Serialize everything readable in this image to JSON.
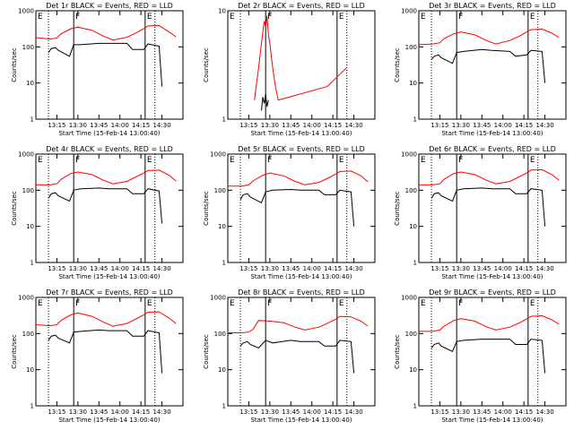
{
  "chart_data": [
    {
      "type": "line",
      "title": "Det 1r BLACK = Events, RED = LLD",
      "xlabel": "Start Time (15-Feb-14 13:00:40)",
      "ylabel": "Counts/sec",
      "ylim": [
        1,
        1000
      ],
      "y_scale": "log",
      "grid": false,
      "x_ticks": [
        "13:15",
        "13:30",
        "13:45",
        "14:00",
        "14:15",
        "14:30"
      ],
      "y_ticks": [
        "1",
        "10",
        "100",
        "1000"
      ],
      "markers": [
        {
          "label": "E",
          "at": "13:00"
        },
        {
          "label": "F",
          "at": "13:27"
        },
        {
          "label": "E",
          "at": "14:18"
        }
      ],
      "series": [
        {
          "color": "#ff0000",
          "x": [
            "13:00",
            "13:10",
            "13:15",
            "13:18",
            "13:25",
            "13:30",
            "13:40",
            "13:48",
            "13:55",
            "14:05",
            "14:12",
            "14:17",
            "14:20",
            "14:28",
            "14:35",
            "14:40"
          ],
          "values": [
            180,
            165,
            175,
            230,
            320,
            350,
            290,
            200,
            155,
            185,
            250,
            320,
            380,
            390,
            260,
            190
          ]
        },
        {
          "color": "#000000",
          "x": [
            "13:09",
            "13:11",
            "13:14",
            "13:16",
            "13:24",
            "13:27",
            "13:32",
            "13:45",
            "13:52",
            "14:05",
            "14:09",
            "14:17",
            "14:20",
            "14:28",
            "14:30"
          ],
          "values": [
            70,
            90,
            95,
            80,
            55,
            115,
            115,
            125,
            125,
            125,
            85,
            85,
            120,
            105,
            8
          ]
        }
      ]
    },
    {
      "type": "line",
      "title": "Det 2r BLACK = Events, RED = LLD",
      "xlabel": "Start Time (15-Feb-14 13:00:40)",
      "ylabel": "Counts/sec",
      "ylim": [
        1,
        10
      ],
      "y_scale": "log",
      "grid": false,
      "x_ticks": [
        "13:15",
        "13:30",
        "13:45",
        "14:00",
        "14:15",
        "14:30"
      ],
      "y_ticks": [
        "1",
        "10"
      ],
      "markers": [
        {
          "label": "E",
          "at": "13:00"
        },
        {
          "label": "F",
          "at": "13:27"
        },
        {
          "label": "E",
          "at": "14:18"
        }
      ],
      "series": [
        {
          "color": "#ff0000",
          "x": [
            "13:19",
            "13:22",
            "13:24",
            "13:26",
            "13:27",
            "13:28",
            "13:29",
            "13:30",
            "13:32",
            "13:34",
            "13:36",
            "14:11",
            "14:25"
          ],
          "values": [
            1.5,
            3,
            5,
            8,
            7,
            9,
            6,
            5,
            3,
            2,
            1.5,
            2,
            3
          ]
        },
        {
          "color": "#000000",
          "x": [
            "13:24",
            "13:25",
            "13:26",
            "13:27",
            "13:28",
            "13:29"
          ],
          "values": [
            1.2,
            1.6,
            1.4,
            1.7,
            1.3,
            1.5
          ]
        }
      ]
    },
    {
      "type": "line",
      "title": "Det 3r BLACK = Events, RED = LLD",
      "xlabel": "Start Time (15-Feb-14 13:00:40)",
      "ylabel": "Counts/sec",
      "ylim": [
        1,
        1000
      ],
      "y_scale": "log",
      "grid": false,
      "x_ticks": [
        "13:15",
        "13:30",
        "13:45",
        "14:00",
        "14:15",
        "14:30"
      ],
      "y_ticks": [
        "1",
        "10",
        "100",
        "1000"
      ],
      "markers": [
        {
          "label": "E",
          "at": "13:00"
        },
        {
          "label": "F",
          "at": "13:27"
        },
        {
          "label": "E",
          "at": "14:18"
        }
      ],
      "series": [
        {
          "color": "#ff0000",
          "x": [
            "13:00",
            "13:10",
            "13:15",
            "13:18",
            "13:25",
            "13:30",
            "13:40",
            "13:48",
            "13:55",
            "14:05",
            "14:12",
            "14:17",
            "14:20",
            "14:28",
            "14:35",
            "14:40"
          ],
          "values": [
            115,
            120,
            130,
            170,
            230,
            260,
            215,
            150,
            120,
            150,
            200,
            260,
            300,
            310,
            240,
            180
          ]
        },
        {
          "color": "#000000",
          "x": [
            "13:09",
            "13:11",
            "13:14",
            "13:16",
            "13:24",
            "13:27",
            "13:32",
            "13:45",
            "13:52",
            "14:05",
            "14:09",
            "14:17",
            "14:20",
            "14:28",
            "14:30"
          ],
          "values": [
            45,
            55,
            60,
            50,
            35,
            70,
            75,
            85,
            80,
            75,
            55,
            60,
            80,
            75,
            10
          ]
        }
      ]
    },
    {
      "type": "line",
      "title": "Det 4r BLACK = Events, RED = LLD",
      "xlabel": "Start Time (15-Feb-14 13:00:40)",
      "ylabel": "Counts/sec",
      "ylim": [
        1,
        1000
      ],
      "y_scale": "log",
      "grid": false,
      "x_ticks": [
        "13:15",
        "13:30",
        "13:45",
        "14:00",
        "14:15",
        "14:30"
      ],
      "y_ticks": [
        "1",
        "10",
        "100",
        "1000"
      ],
      "markers": [
        {
          "label": "E",
          "at": "13:00"
        },
        {
          "label": "F",
          "at": "13:27"
        },
        {
          "label": "E",
          "at": "14:18"
        }
      ],
      "series": [
        {
          "color": "#ff0000",
          "x": [
            "13:00",
            "13:10",
            "13:15",
            "13:18",
            "13:25",
            "13:30",
            "13:40",
            "13:48",
            "13:55",
            "14:05",
            "14:12",
            "14:17",
            "14:20",
            "14:28",
            "14:35",
            "14:40"
          ],
          "values": [
            140,
            140,
            150,
            200,
            290,
            320,
            270,
            190,
            150,
            175,
            240,
            300,
            350,
            360,
            260,
            180
          ]
        },
        {
          "color": "#000000",
          "x": [
            "13:09",
            "13:11",
            "13:14",
            "13:16",
            "13:24",
            "13:27",
            "13:32",
            "13:45",
            "13:52",
            "14:05",
            "14:09",
            "14:17",
            "14:20",
            "14:28",
            "14:30"
          ],
          "values": [
            60,
            80,
            85,
            70,
            50,
            100,
            110,
            115,
            110,
            110,
            80,
            80,
            110,
            95,
            12
          ]
        }
      ]
    },
    {
      "type": "line",
      "title": "Det 5r BLACK = Events, RED = LLD",
      "xlabel": "Start Time (15-Feb-14 13:00:40)",
      "ylabel": "Counts/sec",
      "ylim": [
        1,
        1000
      ],
      "y_scale": "log",
      "grid": false,
      "x_ticks": [
        "13:15",
        "13:30",
        "13:45",
        "14:00",
        "14:15",
        "14:30"
      ],
      "y_ticks": [
        "1",
        "10",
        "100",
        "1000"
      ],
      "markers": [
        {
          "label": "E",
          "at": "13:00"
        },
        {
          "label": "F",
          "at": "13:27"
        },
        {
          "label": "E",
          "at": "14:18"
        }
      ],
      "series": [
        {
          "color": "#ff0000",
          "x": [
            "13:00",
            "13:10",
            "13:15",
            "13:18",
            "13:25",
            "13:30",
            "13:40",
            "13:48",
            "13:55",
            "14:05",
            "14:12",
            "14:17",
            "14:20",
            "14:28",
            "14:35",
            "14:40"
          ],
          "values": [
            130,
            130,
            140,
            180,
            260,
            300,
            250,
            175,
            140,
            165,
            220,
            280,
            330,
            340,
            250,
            170
          ]
        },
        {
          "color": "#000000",
          "x": [
            "13:09",
            "13:11",
            "13:14",
            "13:16",
            "13:24",
            "13:27",
            "13:32",
            "13:45",
            "13:52",
            "14:05",
            "14:09",
            "14:17",
            "14:20",
            "14:28",
            "14:30"
          ],
          "values": [
            55,
            75,
            80,
            65,
            45,
            90,
            100,
            105,
            100,
            100,
            75,
            75,
            100,
            90,
            10
          ]
        }
      ]
    },
    {
      "type": "line",
      "title": "Det 6r BLACK = Events, RED = LLD",
      "xlabel": "Start Time (15-Feb-14 13:00:40)",
      "ylabel": "Counts/sec",
      "ylim": [
        1,
        1000
      ],
      "y_scale": "log",
      "grid": false,
      "x_ticks": [
        "13:15",
        "13:30",
        "13:45",
        "14:00",
        "14:15",
        "14:30"
      ],
      "y_ticks": [
        "1",
        "10",
        "100",
        "1000"
      ],
      "markers": [
        {
          "label": "E",
          "at": "13:00"
        },
        {
          "label": "F",
          "at": "13:27"
        },
        {
          "label": "E",
          "at": "14:18"
        }
      ],
      "series": [
        {
          "color": "#ff0000",
          "x": [
            "13:00",
            "13:10",
            "13:15",
            "13:18",
            "13:25",
            "13:30",
            "13:40",
            "13:48",
            "13:55",
            "14:05",
            "14:12",
            "14:17",
            "14:20",
            "14:28",
            "14:35",
            "14:40"
          ],
          "values": [
            140,
            140,
            150,
            200,
            290,
            320,
            270,
            190,
            150,
            175,
            240,
            300,
            360,
            370,
            270,
            190
          ]
        },
        {
          "color": "#000000",
          "x": [
            "13:09",
            "13:11",
            "13:14",
            "13:16",
            "13:24",
            "13:27",
            "13:32",
            "13:45",
            "13:52",
            "14:05",
            "14:09",
            "14:17",
            "14:20",
            "14:28",
            "14:30"
          ],
          "values": [
            60,
            80,
            85,
            70,
            50,
            100,
            110,
            115,
            110,
            110,
            80,
            80,
            110,
            100,
            10
          ]
        }
      ]
    },
    {
      "type": "line",
      "title": "Det 7r BLACK = Events, RED = LLD",
      "xlabel": "Start Time (15-Feb-14 13:00:40)",
      "ylabel": "Counts/sec",
      "ylim": [
        1,
        1000
      ],
      "y_scale": "log",
      "grid": false,
      "x_ticks": [
        "13:15",
        "13:30",
        "13:45",
        "14:00",
        "14:15",
        "14:30"
      ],
      "y_ticks": [
        "1",
        "10",
        "100",
        "1000"
      ],
      "markers": [
        {
          "label": "E",
          "at": "13:00"
        },
        {
          "label": "F",
          "at": "13:27"
        },
        {
          "label": "E",
          "at": "14:18"
        }
      ],
      "series": [
        {
          "color": "#ff0000",
          "x": [
            "13:00",
            "13:10",
            "13:15",
            "13:18",
            "13:25",
            "13:30",
            "13:40",
            "13:48",
            "13:55",
            "14:05",
            "14:12",
            "14:17",
            "14:20",
            "14:28",
            "14:35",
            "14:40"
          ],
          "values": [
            175,
            165,
            175,
            230,
            330,
            370,
            300,
            210,
            160,
            190,
            260,
            330,
            390,
            400,
            270,
            190
          ]
        },
        {
          "color": "#000000",
          "x": [
            "13:09",
            "13:11",
            "13:14",
            "13:16",
            "13:24",
            "13:27",
            "13:32",
            "13:45",
            "13:52",
            "14:05",
            "14:09",
            "14:17",
            "14:20",
            "14:28",
            "14:30"
          ],
          "values": [
            65,
            85,
            90,
            75,
            55,
            110,
            115,
            125,
            120,
            120,
            85,
            85,
            120,
            105,
            8
          ]
        }
      ]
    },
    {
      "type": "line",
      "title": "Det 8r BLACK = Events, RED = LLD",
      "xlabel": "Start Time (15-Feb-14 13:00:40)",
      "ylabel": "Counts/sec",
      "ylim": [
        1,
        1000
      ],
      "y_scale": "log",
      "grid": false,
      "x_ticks": [
        "13:15",
        "13:30",
        "13:45",
        "14:00",
        "14:15",
        "14:30"
      ],
      "y_ticks": [
        "1",
        "10",
        "100",
        "1000"
      ],
      "markers": [
        {
          "label": "E",
          "at": "13:00"
        },
        {
          "label": "F",
          "at": "13:27"
        },
        {
          "label": "E",
          "at": "14:18"
        }
      ],
      "series": [
        {
          "color": "#ff0000",
          "x": [
            "13:00",
            "13:10",
            "13:15",
            "13:18",
            "13:22",
            "13:30",
            "13:40",
            "13:48",
            "13:55",
            "14:05",
            "14:12",
            "14:17",
            "14:20",
            "14:28",
            "14:35",
            "14:40"
          ],
          "values": [
            105,
            105,
            110,
            130,
            230,
            220,
            200,
            150,
            125,
            150,
            200,
            250,
            300,
            290,
            220,
            160
          ]
        },
        {
          "color": "#000000",
          "x": [
            "13:09",
            "13:11",
            "13:14",
            "13:16",
            "13:22",
            "13:27",
            "13:32",
            "13:45",
            "13:52",
            "14:05",
            "14:09",
            "14:17",
            "14:20",
            "14:28",
            "14:30"
          ],
          "values": [
            45,
            55,
            60,
            50,
            40,
            65,
            55,
            65,
            60,
            60,
            45,
            45,
            65,
            60,
            8
          ]
        }
      ]
    },
    {
      "type": "line",
      "title": "Det 9r BLACK = Events, RED = LLD",
      "xlabel": "Start Time (15-Feb-14 13:00:40)",
      "ylabel": "Counts/sec",
      "ylim": [
        1,
        1000
      ],
      "y_scale": "log",
      "grid": false,
      "x_ticks": [
        "13:15",
        "13:30",
        "13:45",
        "14:00",
        "14:15",
        "14:30"
      ],
      "y_ticks": [
        "1",
        "10",
        "100",
        "1000"
      ],
      "markers": [
        {
          "label": "E",
          "at": "13:00"
        },
        {
          "label": "F",
          "at": "13:27"
        },
        {
          "label": "E",
          "at": "14:18"
        }
      ],
      "series": [
        {
          "color": "#ff0000",
          "x": [
            "13:00",
            "13:10",
            "13:15",
            "13:18",
            "13:25",
            "13:30",
            "13:40",
            "13:48",
            "13:55",
            "14:05",
            "14:12",
            "14:17",
            "14:20",
            "14:28",
            "14:35",
            "14:40"
          ],
          "values": [
            115,
            115,
            125,
            160,
            230,
            260,
            220,
            155,
            125,
            150,
            200,
            255,
            300,
            310,
            240,
            180
          ]
        },
        {
          "color": "#000000",
          "x": [
            "13:09",
            "13:11",
            "13:14",
            "13:16",
            "13:24",
            "13:27",
            "13:32",
            "13:45",
            "13:52",
            "14:05",
            "14:09",
            "14:17",
            "14:20",
            "14:28",
            "14:30"
          ],
          "values": [
            40,
            50,
            55,
            45,
            32,
            60,
            65,
            70,
            70,
            70,
            50,
            50,
            70,
            65,
            8
          ]
        }
      ]
    }
  ]
}
